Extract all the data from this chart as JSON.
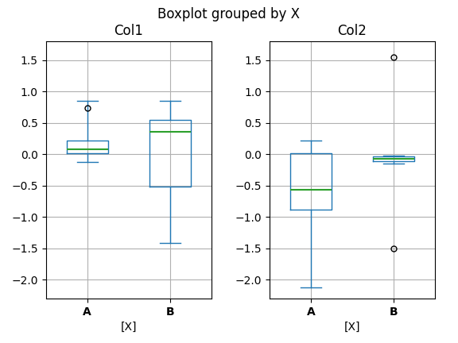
{
  "title": "Boxplot grouped by X",
  "subplots": [
    {
      "title": "Col1",
      "xlabel": "[X]",
      "groups": [
        "A",
        "B"
      ],
      "stats": [
        {
          "med": 0.08,
          "q1": 0.02,
          "q3": 0.22,
          "whislo": -0.12,
          "whishi": 0.85,
          "fliers": [
            0.73
          ]
        },
        {
          "med": 0.35,
          "q1": -0.52,
          "q3": 0.55,
          "whislo": -1.42,
          "whishi": 0.85,
          "fliers": []
        }
      ]
    },
    {
      "title": "Col2",
      "xlabel": "[X]",
      "groups": [
        "A",
        "B"
      ],
      "stats": [
        {
          "med": -0.57,
          "q1": -0.88,
          "q3": 0.02,
          "whislo": -2.12,
          "whishi": 0.22,
          "fliers": []
        },
        {
          "med": -0.08,
          "q1": -0.115,
          "q3": -0.042,
          "whislo": -0.155,
          "whishi": -0.02,
          "fliers": [
            1.55,
            -1.5
          ]
        }
      ]
    }
  ],
  "box_color": "#1f77b4",
  "median_color": "#2ca02c",
  "flier_color": "#000000",
  "background_color": "#ffffff",
  "grid_color": "#b0b0b0",
  "figsize": [
    5.76,
    4.32
  ],
  "dpi": 100,
  "ylim": [
    -2.3,
    1.8
  ],
  "box_width": 0.5,
  "positions": [
    1,
    2
  ]
}
